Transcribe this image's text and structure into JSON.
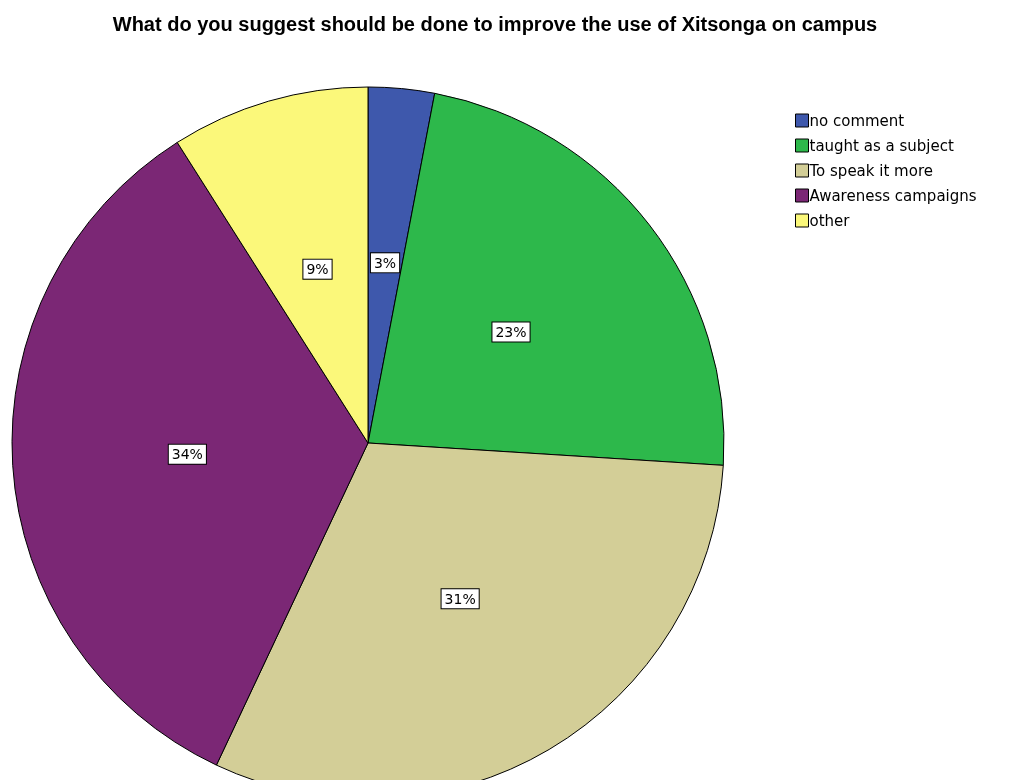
{
  "chart_data": {
    "type": "pie",
    "title": "What do you suggest should be done to improve the use of Xitsonga on campus",
    "categories": [
      "no comment",
      "taught as a subject",
      "To speak it more",
      "Awareness campaigns",
      "other"
    ],
    "values": [
      3,
      23,
      31,
      34,
      9
    ],
    "colors": [
      "#3e58ac",
      "#2db84b",
      "#d3ce97",
      "#7b2775",
      "#fbf87a"
    ],
    "value_labels": [
      "3%",
      "23%",
      "31%",
      "34%",
      "9%"
    ],
    "legend": "top right"
  }
}
